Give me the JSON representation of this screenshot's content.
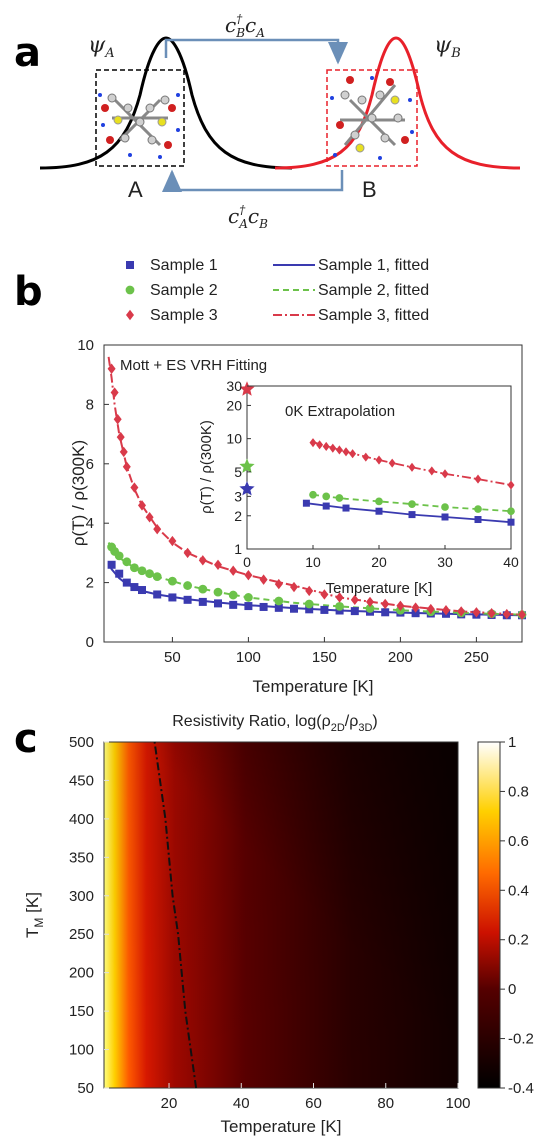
{
  "panel_a": {
    "panel_label": "a",
    "psi_a": "ψ",
    "psi_a_sub": "A",
    "psi_b": "ψ",
    "psi_b_sub": "B",
    "site_a": "A",
    "site_b": "B",
    "hop_top": {
      "c1": "c",
      "c1_sup": "†",
      "c1_sub": "B",
      "c2": "c",
      "c2_sub": "A"
    },
    "hop_bottom": {
      "c1": "c",
      "c1_sup": "†",
      "c1_sub": "A",
      "c2": "c",
      "c2_sub": "B"
    },
    "colors": {
      "site_a": "#000000",
      "site_b": "#e8202a",
      "arrow": "#6b8fb8"
    }
  },
  "panel_b_label": "b",
  "panel_c_label": "c",
  "chart_data": [
    {
      "type": "line",
      "legend_placement": "top",
      "legend": [
        {
          "label": "Sample 1",
          "kind": "marker",
          "marker": "square",
          "color": "#3a3ab0"
        },
        {
          "label": "Sample 2",
          "kind": "marker",
          "marker": "circle",
          "color": "#6cc24a"
        },
        {
          "label": "Sample 3",
          "kind": "marker",
          "marker": "diamond",
          "color": "#d93a4a"
        },
        {
          "label": "Sample 1, fitted",
          "kind": "line",
          "dash": "solid",
          "color": "#3a3ab0"
        },
        {
          "label": "Sample 2, fitted",
          "kind": "line",
          "dash": "dashed",
          "color": "#6cc24a"
        },
        {
          "label": "Sample 3, fitted",
          "kind": "line",
          "dash": "dashdot",
          "color": "#d93a4a"
        }
      ],
      "annotation": "Mott + ES VRH Fitting",
      "xlabel": "Temperature [K]",
      "ylabel": "ρ(T) / ρ(300K)",
      "xlim": [
        5,
        280
      ],
      "ylim": [
        0,
        10
      ],
      "xticks": [
        "50",
        "100",
        "150",
        "200",
        "250"
      ],
      "xtick_values": [
        50,
        100,
        150,
        200,
        250
      ],
      "yticks": [
        "0",
        "2",
        "4",
        "6",
        "8",
        "10"
      ],
      "ytick_values": [
        0,
        2,
        4,
        6,
        8,
        10
      ],
      "series": [
        {
          "name": "Sample 1",
          "marker": "square",
          "color": "#3a3ab0",
          "x": [
            10,
            15,
            20,
            25,
            30,
            40,
            50,
            60,
            70,
            80,
            90,
            100,
            110,
            120,
            130,
            140,
            150,
            160,
            170,
            180,
            190,
            200,
            210,
            220,
            230,
            240,
            250,
            260,
            270,
            280
          ],
          "y": [
            2.6,
            2.3,
            2.0,
            1.85,
            1.75,
            1.6,
            1.5,
            1.42,
            1.35,
            1.3,
            1.25,
            1.21,
            1.18,
            1.15,
            1.12,
            1.1,
            1.08,
            1.06,
            1.04,
            1.02,
            1.0,
            0.99,
            0.97,
            0.96,
            0.95,
            0.93,
            0.92,
            0.91,
            0.9,
            0.9
          ]
        },
        {
          "name": "Sample 2",
          "marker": "circle",
          "color": "#6cc24a",
          "x": [
            10,
            12,
            15,
            20,
            25,
            30,
            35,
            40,
            50,
            60,
            70,
            80,
            90,
            100,
            120,
            140,
            160,
            180,
            200,
            220,
            240,
            260,
            280
          ],
          "y": [
            3.2,
            3.05,
            2.9,
            2.7,
            2.5,
            2.4,
            2.3,
            2.2,
            2.05,
            1.9,
            1.78,
            1.68,
            1.58,
            1.5,
            1.38,
            1.28,
            1.2,
            1.13,
            1.07,
            1.02,
            0.98,
            0.95,
            0.92
          ]
        },
        {
          "name": "Sample 3",
          "marker": "diamond",
          "color": "#d93a4a",
          "x": [
            10,
            12,
            14,
            16,
            18,
            20,
            25,
            30,
            35,
            40,
            50,
            60,
            70,
            80,
            90,
            100,
            110,
            120,
            130,
            140,
            150,
            160,
            170,
            180,
            190,
            200,
            210,
            220,
            230,
            240,
            250,
            260,
            270,
            280
          ],
          "y": [
            9.2,
            8.4,
            7.5,
            6.9,
            6.4,
            5.9,
            5.2,
            4.6,
            4.2,
            3.8,
            3.4,
            3.0,
            2.75,
            2.6,
            2.4,
            2.25,
            2.1,
            1.95,
            1.85,
            1.72,
            1.6,
            1.5,
            1.42,
            1.35,
            1.28,
            1.22,
            1.16,
            1.11,
            1.07,
            1.03,
            1.0,
            0.97,
            0.94,
            0.92
          ]
        }
      ],
      "fits": [
        {
          "name": "Sample 1, fitted",
          "color": "#3a3ab0",
          "dash": "solid",
          "x": [
            8,
            10,
            15,
            20,
            30,
            40,
            60,
            80,
            100,
            130,
            160,
            200,
            240,
            280
          ],
          "y": [
            2.65,
            2.45,
            2.15,
            1.95,
            1.72,
            1.6,
            1.44,
            1.33,
            1.24,
            1.14,
            1.06,
            0.99,
            0.94,
            0.9
          ]
        },
        {
          "name": "Sample 2, fitted",
          "color": "#6cc24a",
          "dash": "dashed",
          "x": [
            8,
            10,
            15,
            20,
            30,
            40,
            60,
            80,
            100,
            130,
            160,
            200,
            240,
            280
          ],
          "y": [
            3.35,
            3.15,
            2.85,
            2.65,
            2.4,
            2.2,
            1.9,
            1.68,
            1.5,
            1.32,
            1.2,
            1.07,
            0.98,
            0.92
          ]
        },
        {
          "name": "Sample 3, fitted",
          "color": "#d93a4a",
          "dash": "dashdot",
          "x": [
            8,
            10,
            12,
            15,
            20,
            25,
            30,
            40,
            50,
            60,
            80,
            100,
            130,
            160,
            200,
            240,
            280
          ],
          "y": [
            9.6,
            8.9,
            8.0,
            7.0,
            5.9,
            5.15,
            4.6,
            3.85,
            3.35,
            3.0,
            2.55,
            2.25,
            1.9,
            1.5,
            1.22,
            1.03,
            0.92
          ]
        }
      ],
      "inset": {
        "type": "line",
        "title": "0K Extrapolation",
        "xlabel": "Temperature [K]",
        "ylabel": "ρ(T) / ρ(300K)",
        "yscale": "log",
        "xlim": [
          0,
          40
        ],
        "ylim": [
          1,
          30
        ],
        "xticks": [
          "0",
          "10",
          "20",
          "30",
          "40"
        ],
        "xtick_values": [
          0,
          10,
          20,
          30,
          40
        ],
        "yticks": [
          "1",
          "2",
          "3",
          "5",
          "10",
          "20",
          "30"
        ],
        "ytick_values": [
          1,
          2,
          3,
          5,
          10,
          20,
          30
        ],
        "extrapolated_0K": [
          {
            "name": "Sample 1",
            "y": 3.5,
            "color": "#3a3ab0"
          },
          {
            "name": "Sample 2",
            "y": 5.6,
            "color": "#6cc24a"
          },
          {
            "name": "Sample 3",
            "y": 28,
            "color": "#d93a4a"
          }
        ],
        "series": [
          {
            "name": "Sample 1",
            "marker": "square",
            "color": "#3a3ab0",
            "x": [
              9,
              12,
              15,
              20,
              25,
              30,
              35,
              40
            ],
            "y": [
              2.6,
              2.45,
              2.35,
              2.2,
              2.05,
              1.95,
              1.85,
              1.75
            ]
          },
          {
            "name": "Sample 2",
            "marker": "circle",
            "color": "#6cc24a",
            "x": [
              10,
              12,
              14,
              20,
              25,
              30,
              35,
              40
            ],
            "y": [
              3.1,
              3.0,
              2.9,
              2.7,
              2.55,
              2.4,
              2.3,
              2.2
            ]
          },
          {
            "name": "Sample 3",
            "marker": "diamond",
            "color": "#d93a4a",
            "x": [
              10,
              11,
              12,
              13,
              14,
              15,
              16,
              18,
              20,
              22,
              25,
              28,
              30,
              35,
              40
            ],
            "y": [
              9.2,
              8.8,
              8.5,
              8.2,
              7.9,
              7.6,
              7.3,
              6.8,
              6.4,
              6.0,
              5.5,
              5.1,
              4.8,
              4.3,
              3.8
            ]
          }
        ],
        "fits": [
          {
            "name": "Sample 1, fitted",
            "color": "#3a3ab0",
            "dash": "solid",
            "x": [
              9,
              15,
              20,
              25,
              30,
              35,
              40
            ],
            "y": [
              2.6,
              2.35,
              2.2,
              2.05,
              1.95,
              1.85,
              1.75
            ]
          },
          {
            "name": "Sample 2, fitted",
            "color": "#6cc24a",
            "dash": "dashed",
            "x": [
              10,
              15,
              20,
              25,
              30,
              35,
              40
            ],
            "y": [
              3.1,
              2.85,
              2.7,
              2.55,
              2.4,
              2.3,
              2.2
            ]
          },
          {
            "name": "Sample 3, fitted",
            "color": "#d93a4a",
            "dash": "dashdot",
            "x": [
              10,
              15,
              20,
              25,
              30,
              35,
              40
            ],
            "y": [
              9.3,
              7.6,
              6.4,
              5.5,
              4.8,
              4.3,
              3.8
            ]
          }
        ]
      }
    },
    {
      "type": "heatmap",
      "title": "Resistivity Ratio, log(ρ2D/ρ3D)",
      "title_parts": {
        "prefix": "Resistivity Ratio, log(ρ",
        "sub1": "2D",
        "mid": "/ρ",
        "sub2": "3D",
        "suffix": ")"
      },
      "xlabel": "Temperature [K]",
      "ylabel_main": "T",
      "ylabel_sub": "M",
      "ylabel_unit": " [K]",
      "xlim": [
        2,
        100
      ],
      "ylim": [
        50,
        500
      ],
      "xticks": [
        "20",
        "40",
        "60",
        "80",
        "100"
      ],
      "xtick_values": [
        20,
        40,
        60,
        80,
        100
      ],
      "yticks": [
        "50",
        "100",
        "150",
        "200",
        "250",
        "300",
        "350",
        "400",
        "450",
        "500"
      ],
      "ytick_values": [
        50,
        100,
        150,
        200,
        250,
        300,
        350,
        400,
        450,
        500
      ],
      "colorbar": {
        "range": [
          -0.4,
          1
        ],
        "ticks": [
          "1",
          "0.8",
          "0.6",
          "0.4",
          "0.2",
          "0",
          "-0.2",
          "-0.4"
        ],
        "tick_values": [
          1,
          0.8,
          0.6,
          0.4,
          0.2,
          0,
          -0.2,
          -0.4
        ]
      },
      "zero_contour": {
        "style": "dashdot",
        "tm": [
          50,
          100,
          150,
          200,
          250,
          300,
          350,
          400,
          450,
          500
        ],
        "temperature": [
          27.5,
          26,
          24.5,
          23.5,
          22.5,
          21,
          20,
          19,
          17.5,
          16
        ]
      }
    }
  ]
}
